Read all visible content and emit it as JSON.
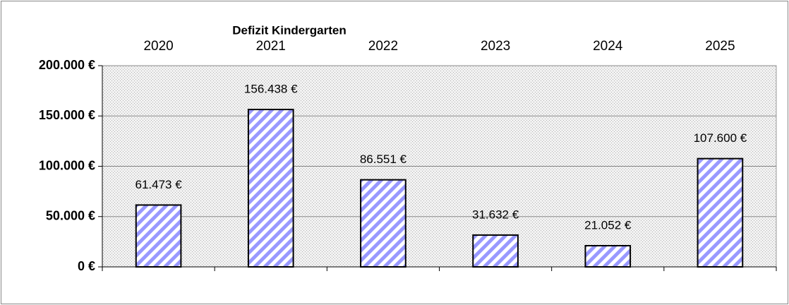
{
  "chart_data": {
    "type": "bar",
    "title": "Defizit Kindergarten",
    "categories": [
      "2020",
      "2021",
      "2022",
      "2023",
      "2024",
      "2025"
    ],
    "values": [
      61473,
      156438,
      86551,
      31632,
      21052,
      107600
    ],
    "value_labels": [
      "61.473 €",
      "156.438 €",
      "86.551 €",
      "31.632 €",
      "21.052 €",
      "107.600 €"
    ],
    "color": "#9999ff",
    "ylim": [
      0,
      200000
    ],
    "yticks": [
      {
        "value": 0,
        "label": "0 €"
      },
      {
        "value": 50000,
        "label": "50.000 €"
      },
      {
        "value": 100000,
        "label": "100.000 €"
      },
      {
        "value": 150000,
        "label": "150.000 €"
      },
      {
        "value": 200000,
        "label": "200.000 €"
      }
    ],
    "grid": true
  }
}
